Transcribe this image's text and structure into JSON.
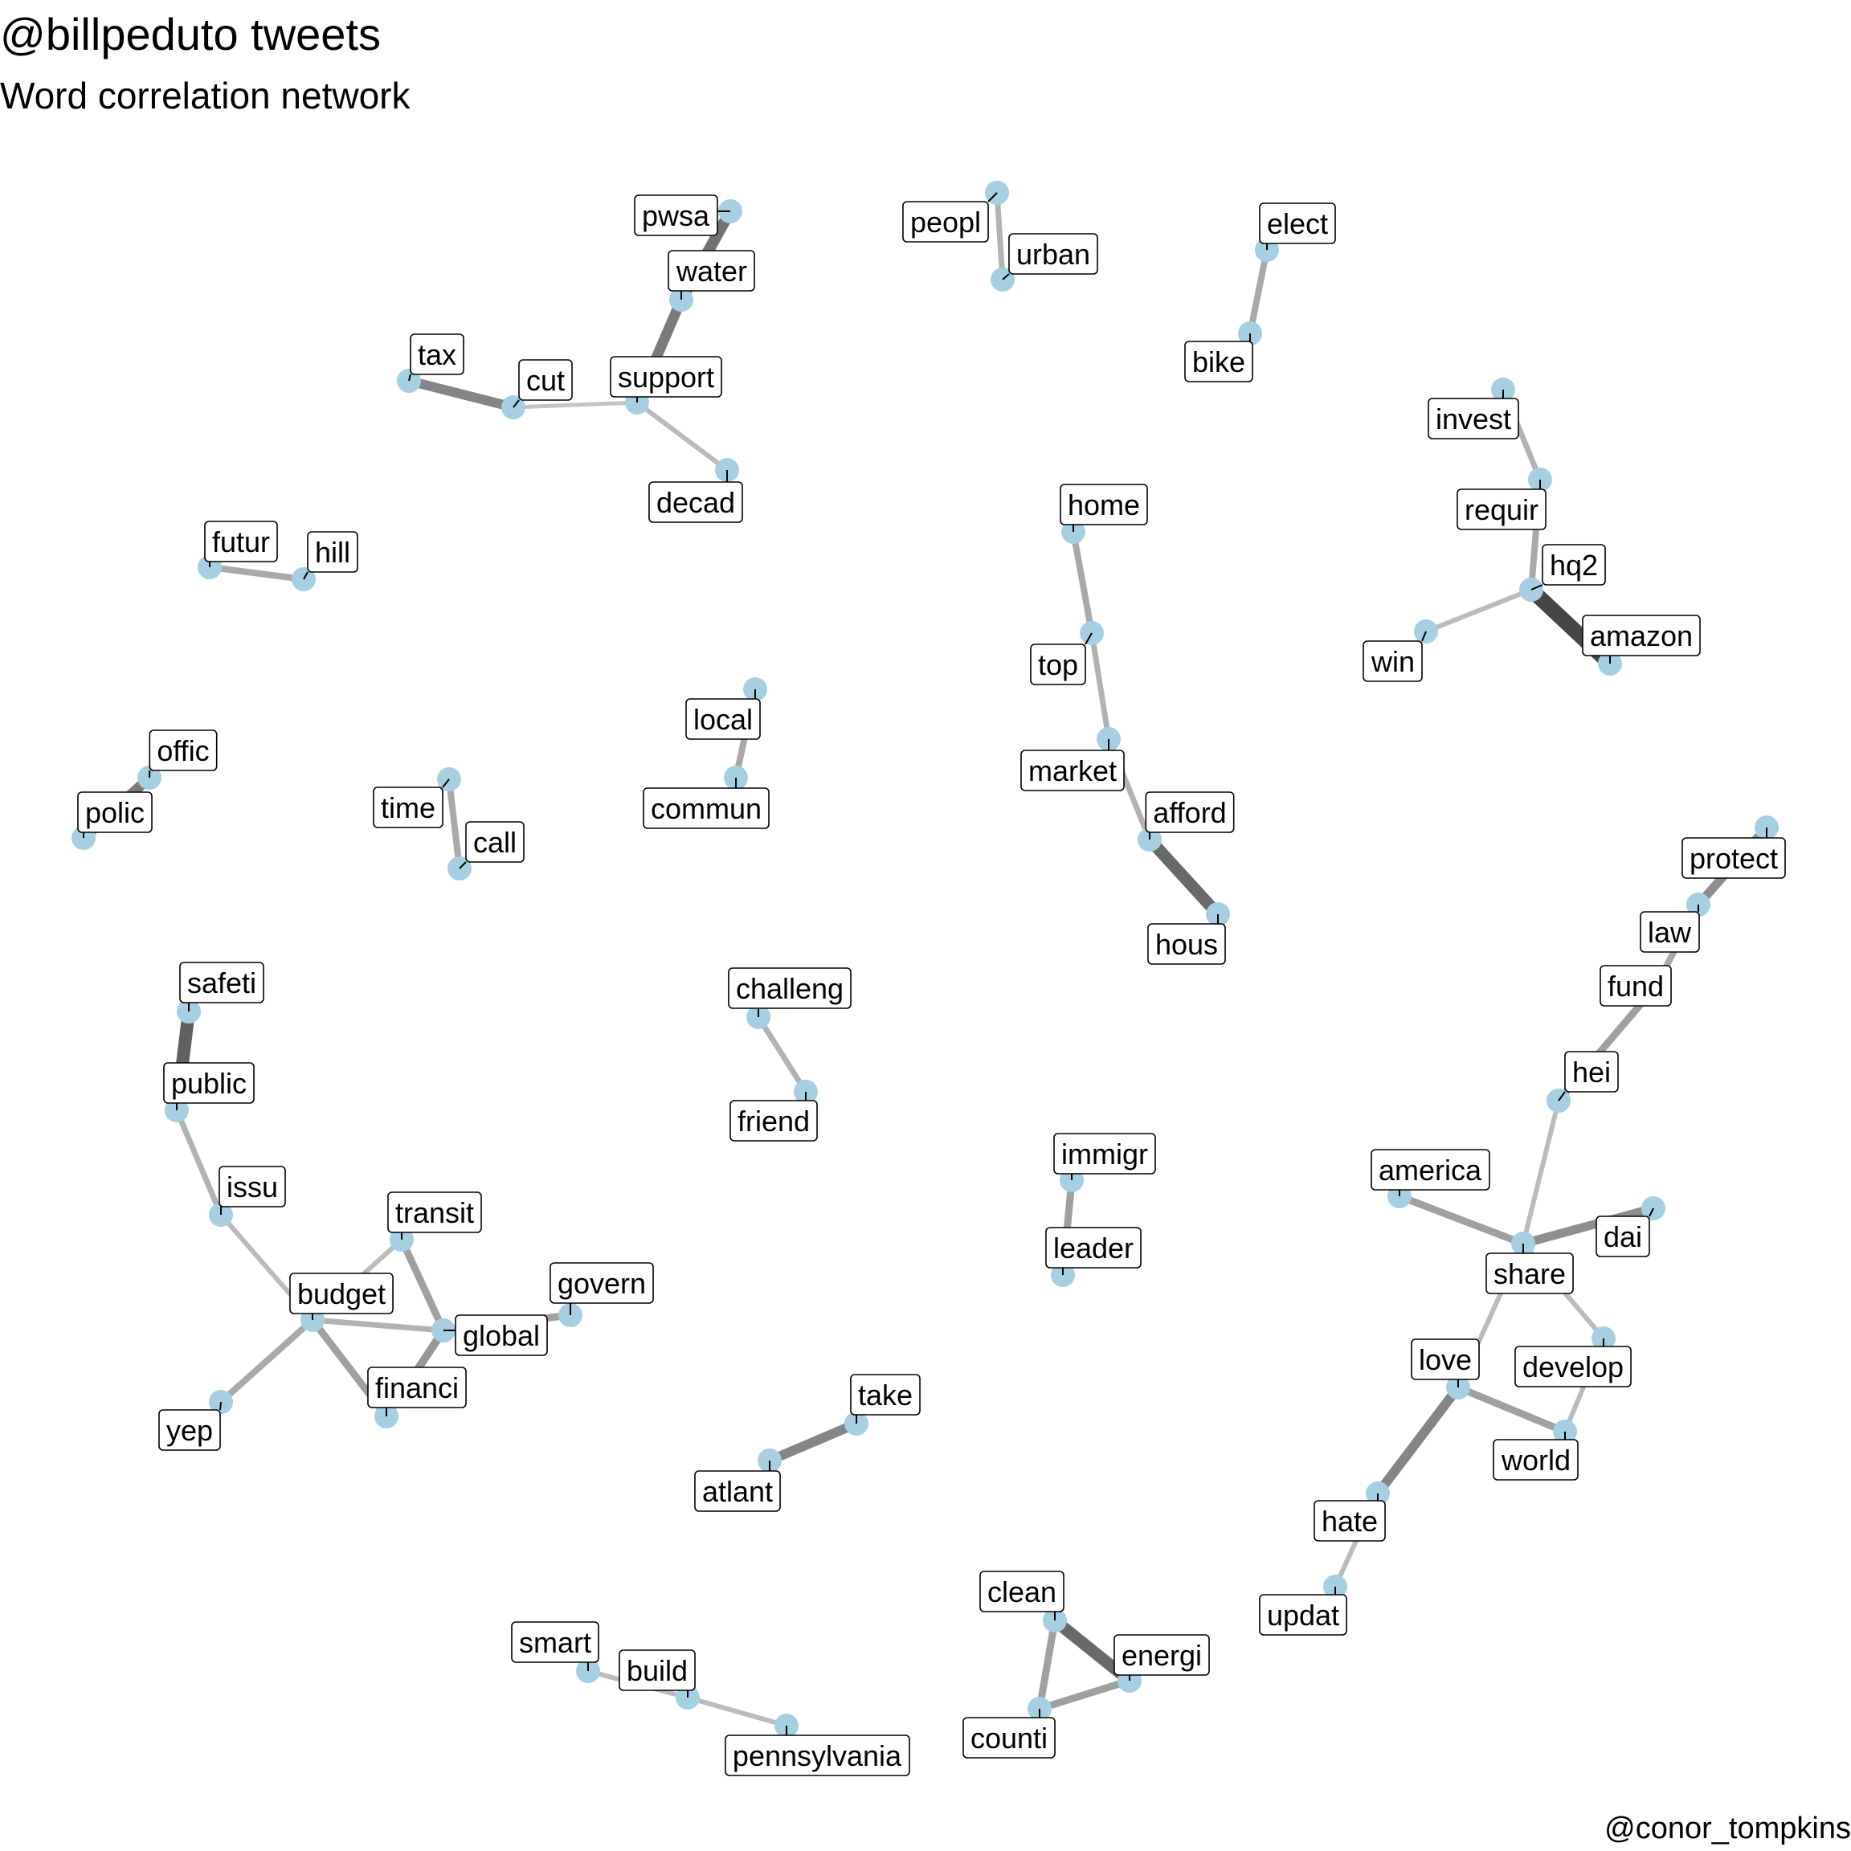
{
  "header": {
    "title": "@billpeduto tweets",
    "subtitle": "Word correlation network"
  },
  "caption": "@conor_tompkins",
  "style": {
    "node_color": "#a6cfe2",
    "edge_color_weak": "#c8c8c8",
    "edge_color_strong": "#404040"
  },
  "nodes": [
    {
      "id": "pwsa",
      "label": "pwsa"
    },
    {
      "id": "water",
      "label": "water"
    },
    {
      "id": "support",
      "label": "support"
    },
    {
      "id": "tax",
      "label": "tax"
    },
    {
      "id": "cut",
      "label": "cut"
    },
    {
      "id": "decad",
      "label": "decad"
    },
    {
      "id": "peopl",
      "label": "peopl"
    },
    {
      "id": "urban",
      "label": "urban"
    },
    {
      "id": "elect",
      "label": "elect"
    },
    {
      "id": "bike",
      "label": "bike"
    },
    {
      "id": "invest",
      "label": "invest"
    },
    {
      "id": "requir",
      "label": "requir"
    },
    {
      "id": "hq2",
      "label": "hq2"
    },
    {
      "id": "amazon",
      "label": "amazon"
    },
    {
      "id": "win",
      "label": "win"
    },
    {
      "id": "futur",
      "label": "futur"
    },
    {
      "id": "hill",
      "label": "hill"
    },
    {
      "id": "home",
      "label": "home"
    },
    {
      "id": "top",
      "label": "top"
    },
    {
      "id": "market",
      "label": "market"
    },
    {
      "id": "afford",
      "label": "afford"
    },
    {
      "id": "hous",
      "label": "hous"
    },
    {
      "id": "local",
      "label": "local"
    },
    {
      "id": "commun",
      "label": "commun"
    },
    {
      "id": "offic",
      "label": "offic"
    },
    {
      "id": "polic",
      "label": "polic"
    },
    {
      "id": "time",
      "label": "time"
    },
    {
      "id": "call",
      "label": "call"
    },
    {
      "id": "protect",
      "label": "protect"
    },
    {
      "id": "law",
      "label": "law"
    },
    {
      "id": "fund",
      "label": "fund"
    },
    {
      "id": "hei",
      "label": "hei"
    },
    {
      "id": "safeti",
      "label": "safeti"
    },
    {
      "id": "public",
      "label": "public"
    },
    {
      "id": "challeng",
      "label": "challeng"
    },
    {
      "id": "friend",
      "label": "friend"
    },
    {
      "id": "issu",
      "label": "issu"
    },
    {
      "id": "transit",
      "label": "transit"
    },
    {
      "id": "budget",
      "label": "budget"
    },
    {
      "id": "global",
      "label": "global"
    },
    {
      "id": "govern",
      "label": "govern"
    },
    {
      "id": "financi",
      "label": "financi"
    },
    {
      "id": "yep",
      "label": "yep"
    },
    {
      "id": "immigr",
      "label": "immigr"
    },
    {
      "id": "leader",
      "label": "leader"
    },
    {
      "id": "america",
      "label": "america"
    },
    {
      "id": "share",
      "label": "share"
    },
    {
      "id": "dai",
      "label": "dai"
    },
    {
      "id": "develop",
      "label": "develop"
    },
    {
      "id": "love",
      "label": "love"
    },
    {
      "id": "world",
      "label": "world"
    },
    {
      "id": "hate",
      "label": "hate"
    },
    {
      "id": "updat",
      "label": "updat"
    },
    {
      "id": "take",
      "label": "take"
    },
    {
      "id": "atlant",
      "label": "atlant"
    },
    {
      "id": "clean",
      "label": "clean"
    },
    {
      "id": "energi",
      "label": "energi"
    },
    {
      "id": "counti",
      "label": "counti"
    },
    {
      "id": "smart",
      "label": "smart"
    },
    {
      "id": "build",
      "label": "build"
    },
    {
      "id": "pennsylvania",
      "label": "pennsylvania"
    }
  ],
  "edges": [
    {
      "source": "pwsa",
      "target": "water",
      "correlation": 0.7
    },
    {
      "source": "water",
      "target": "support",
      "correlation": 0.65
    },
    {
      "source": "tax",
      "target": "cut",
      "correlation": 0.6
    },
    {
      "source": "cut",
      "target": "support",
      "correlation": 0.25
    },
    {
      "source": "support",
      "target": "decad",
      "correlation": 0.3
    },
    {
      "source": "peopl",
      "target": "urban",
      "correlation": 0.35
    },
    {
      "source": "elect",
      "target": "bike",
      "correlation": 0.4
    },
    {
      "source": "invest",
      "target": "requir",
      "correlation": 0.35
    },
    {
      "source": "requir",
      "target": "hq2",
      "correlation": 0.4
    },
    {
      "source": "hq2",
      "target": "amazon",
      "correlation": 0.95
    },
    {
      "source": "hq2",
      "target": "win",
      "correlation": 0.3
    },
    {
      "source": "futur",
      "target": "hill",
      "correlation": 0.4
    },
    {
      "source": "home",
      "target": "top",
      "correlation": 0.4
    },
    {
      "source": "top",
      "target": "market",
      "correlation": 0.35
    },
    {
      "source": "market",
      "target": "afford",
      "correlation": 0.35
    },
    {
      "source": "afford",
      "target": "hous",
      "correlation": 0.75
    },
    {
      "source": "local",
      "target": "commun",
      "correlation": 0.4
    },
    {
      "source": "offic",
      "target": "polic",
      "correlation": 0.65
    },
    {
      "source": "time",
      "target": "call",
      "correlation": 0.4
    },
    {
      "source": "protect",
      "target": "law",
      "correlation": 0.55
    },
    {
      "source": "law",
      "target": "fund",
      "correlation": 0.4
    },
    {
      "source": "fund",
      "target": "hei",
      "correlation": 0.45
    },
    {
      "source": "hei",
      "target": "share",
      "correlation": 0.3
    },
    {
      "source": "safeti",
      "target": "public",
      "correlation": 0.8
    },
    {
      "source": "public",
      "target": "issu",
      "correlation": 0.35
    },
    {
      "source": "issu",
      "target": "budget",
      "correlation": 0.3
    },
    {
      "source": "challeng",
      "target": "friend",
      "correlation": 0.35
    },
    {
      "source": "transit",
      "target": "budget",
      "correlation": 0.3
    },
    {
      "source": "transit",
      "target": "global",
      "correlation": 0.45
    },
    {
      "source": "budget",
      "target": "global",
      "correlation": 0.35
    },
    {
      "source": "budget",
      "target": "financi",
      "correlation": 0.45
    },
    {
      "source": "budget",
      "target": "yep",
      "correlation": 0.4
    },
    {
      "source": "global",
      "target": "govern",
      "correlation": 0.45
    },
    {
      "source": "global",
      "target": "financi",
      "correlation": 0.5
    },
    {
      "source": "immigr",
      "target": "leader",
      "correlation": 0.45
    },
    {
      "source": "america",
      "target": "share",
      "correlation": 0.45
    },
    {
      "source": "share",
      "target": "dai",
      "correlation": 0.55
    },
    {
      "source": "share",
      "target": "develop",
      "correlation": 0.3
    },
    {
      "source": "share",
      "target": "love",
      "correlation": 0.3
    },
    {
      "source": "develop",
      "target": "world",
      "correlation": 0.3
    },
    {
      "source": "love",
      "target": "world",
      "correlation": 0.45
    },
    {
      "source": "love",
      "target": "hate",
      "correlation": 0.6
    },
    {
      "source": "hate",
      "target": "updat",
      "correlation": 0.3
    },
    {
      "source": "take",
      "target": "atlant",
      "correlation": 0.6
    },
    {
      "source": "clean",
      "target": "energi",
      "correlation": 0.75
    },
    {
      "source": "clean",
      "target": "counti",
      "correlation": 0.45
    },
    {
      "source": "energi",
      "target": "counti",
      "correlation": 0.45
    },
    {
      "source": "smart",
      "target": "build",
      "correlation": 0.3
    },
    {
      "source": "build",
      "target": "pennsylvania",
      "correlation": 0.3
    }
  ]
}
